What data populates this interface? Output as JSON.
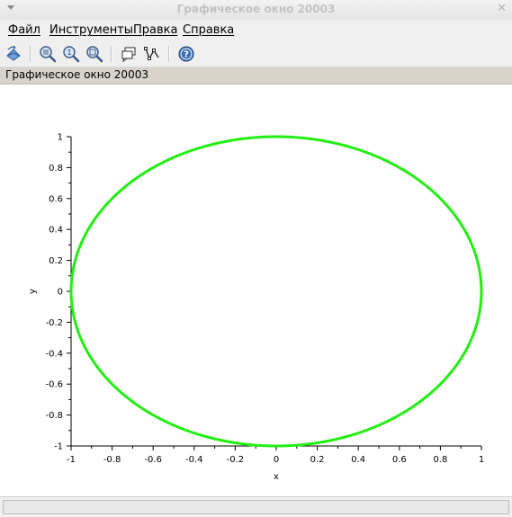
{
  "window": {
    "title": "Графическое окно 20003"
  },
  "menu": {
    "items": [
      {
        "label": "Файл"
      },
      {
        "label": "Инструменты"
      },
      {
        "label": "Правка"
      },
      {
        "label": "Справка"
      }
    ]
  },
  "toolbar": {
    "buttons": [
      {
        "icon": "rotate-axes-icon"
      },
      {
        "icon": "zoom-grid-icon"
      },
      {
        "icon": "zoom-reset-icon"
      },
      {
        "icon": "zoom-area-icon"
      },
      {
        "icon": "datatip-icon"
      },
      {
        "icon": "edit-curve-icon"
      },
      {
        "icon": "help-icon"
      }
    ]
  },
  "figure": {
    "caption": "Графическое окно 20003"
  },
  "colors": {
    "curve": "#22ee11",
    "axis": "#000000"
  },
  "chart_data": {
    "type": "line",
    "title": "",
    "xlabel": "x",
    "ylabel": "y",
    "xlim": [
      -1,
      1
    ],
    "ylim": [
      -1,
      1
    ],
    "grid": false,
    "x_ticks": [
      "-1",
      "-0.8",
      "-0.6",
      "-0.4",
      "-0.2",
      "0",
      "0.2",
      "0.4",
      "0.6",
      "0.8",
      "1"
    ],
    "y_ticks": [
      "-1",
      "-0.8",
      "-0.6",
      "-0.4",
      "-0.2",
      "0",
      "0.2",
      "0.4",
      "0.6",
      "0.8",
      "1"
    ],
    "series": [
      {
        "curve": "circle",
        "center": [
          0,
          0
        ],
        "radius": 1,
        "color": "#22ee11"
      }
    ]
  }
}
